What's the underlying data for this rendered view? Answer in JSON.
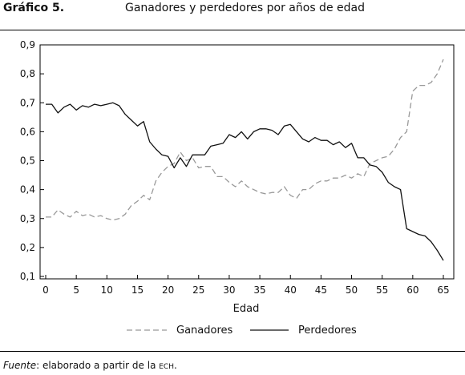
{
  "figure": {
    "label": "Gráfico 5.",
    "title": "Ganadores y perdedores por años de edad"
  },
  "source": {
    "label": "Fuente",
    "text_before": ": elaborado a partir de la ",
    "abbrev": "ECH",
    "text_after": "."
  },
  "chart_data": {
    "type": "line",
    "xlabel": "Edad",
    "ylabel": "",
    "xlim": [
      0,
      65
    ],
    "ylim": [
      0.1,
      0.9
    ],
    "xticks": [
      0,
      5,
      10,
      15,
      20,
      25,
      30,
      35,
      40,
      45,
      50,
      55,
      60,
      65
    ],
    "yticks": [
      "0,1",
      "0,2",
      "0,3",
      "0,4",
      "0,5",
      "0,6",
      "0,7",
      "0,8",
      "0,9"
    ],
    "grid": false,
    "legend": "bottom",
    "x": [
      0,
      1,
      2,
      3,
      4,
      5,
      6,
      7,
      8,
      9,
      10,
      11,
      12,
      13,
      14,
      15,
      16,
      17,
      18,
      19,
      20,
      21,
      22,
      23,
      24,
      25,
      26,
      27,
      28,
      29,
      30,
      31,
      32,
      33,
      34,
      35,
      36,
      37,
      38,
      39,
      40,
      41,
      42,
      43,
      44,
      45,
      46,
      47,
      48,
      49,
      50,
      51,
      52,
      53,
      54,
      55,
      56,
      57,
      58,
      59,
      60,
      61,
      62,
      63,
      64,
      65
    ],
    "series": [
      {
        "name": "Ganadores",
        "style": "dashed",
        "color": "#999999",
        "values": [
          0.305,
          0.305,
          0.33,
          0.315,
          0.305,
          0.325,
          0.31,
          0.315,
          0.305,
          0.31,
          0.3,
          0.295,
          0.3,
          0.315,
          0.345,
          0.36,
          0.38,
          0.365,
          0.43,
          0.46,
          0.48,
          0.49,
          0.53,
          0.5,
          0.51,
          0.475,
          0.48,
          0.48,
          0.445,
          0.445,
          0.425,
          0.41,
          0.43,
          0.41,
          0.4,
          0.39,
          0.385,
          0.39,
          0.39,
          0.41,
          0.38,
          0.37,
          0.4,
          0.4,
          0.42,
          0.43,
          0.43,
          0.44,
          0.44,
          0.45,
          0.44,
          0.455,
          0.445,
          0.49,
          0.5,
          0.51,
          0.515,
          0.54,
          0.58,
          0.6,
          0.74,
          0.76,
          0.76,
          0.77,
          0.8,
          0.85
        ]
      },
      {
        "name": "Perdedores",
        "style": "solid",
        "color": "#111111",
        "values": [
          0.695,
          0.695,
          0.665,
          0.685,
          0.695,
          0.675,
          0.69,
          0.685,
          0.695,
          0.69,
          0.695,
          0.7,
          0.69,
          0.66,
          0.64,
          0.62,
          0.635,
          0.565,
          0.54,
          0.52,
          0.515,
          0.475,
          0.51,
          0.48,
          0.52,
          0.52,
          0.52,
          0.55,
          0.555,
          0.56,
          0.59,
          0.58,
          0.6,
          0.575,
          0.6,
          0.61,
          0.61,
          0.605,
          0.59,
          0.62,
          0.625,
          0.6,
          0.575,
          0.565,
          0.58,
          0.57,
          0.57,
          0.555,
          0.565,
          0.545,
          0.56,
          0.51,
          0.51,
          0.485,
          0.48,
          0.46,
          0.425,
          0.41,
          0.4,
          0.265,
          0.255,
          0.245,
          0.24,
          0.22,
          0.19,
          0.155
        ]
      }
    ]
  }
}
